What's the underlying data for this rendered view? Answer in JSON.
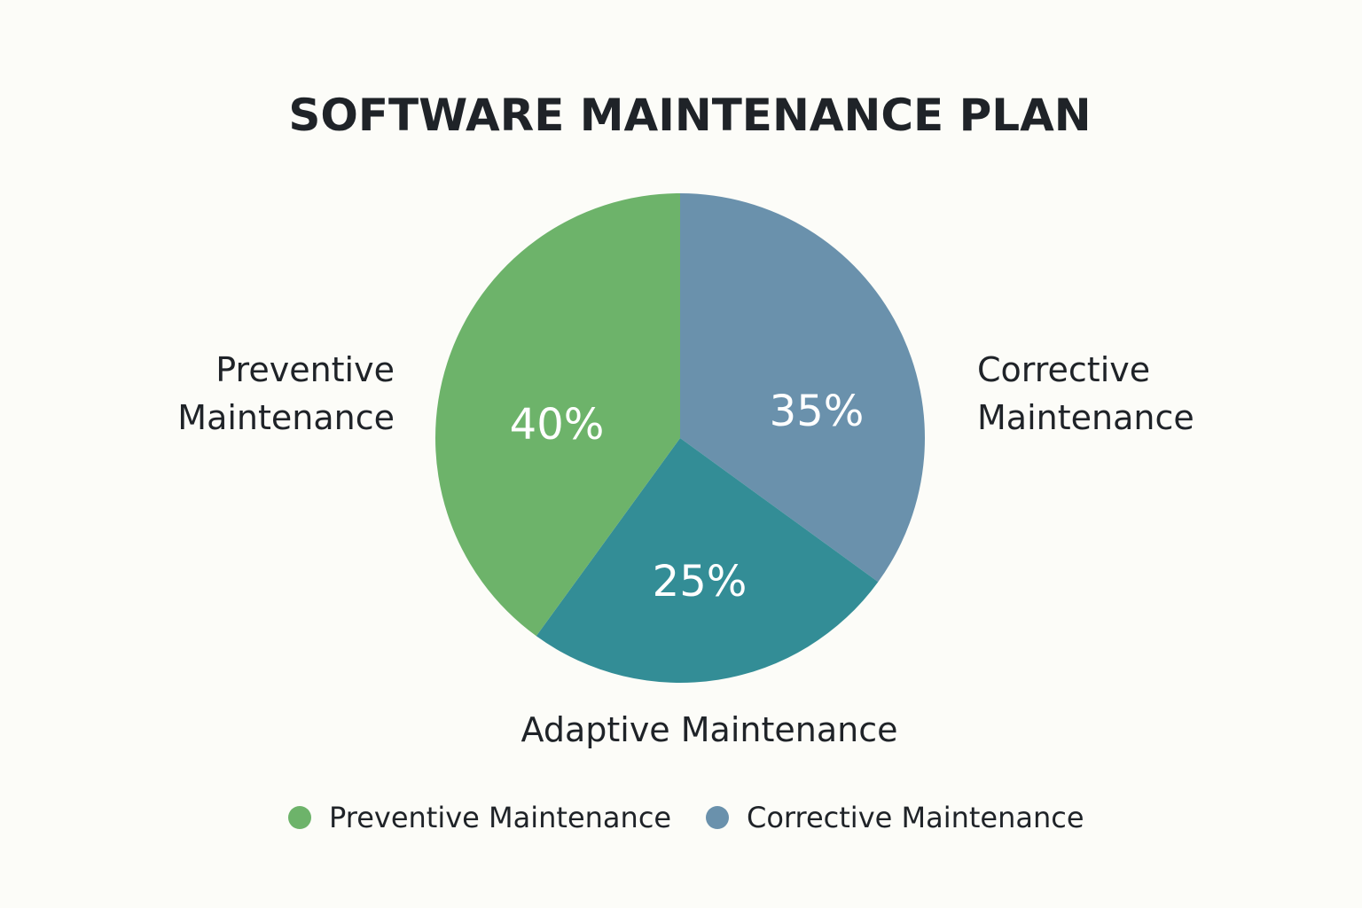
{
  "chart_data": {
    "type": "pie",
    "title": "SOFTWARE MAINTENANCE PLAN",
    "slices": [
      {
        "label_lines": [
          "Corrective",
          "Maintenance"
        ],
        "value": 35,
        "pct_text": "35%",
        "color": "#6a91ac"
      },
      {
        "label_lines": [
          "Adaptive Maintenance"
        ],
        "value": 25,
        "pct_text": "25%",
        "color": "#338d96"
      },
      {
        "label_lines": [
          "Preventive",
          "Maintenance"
        ],
        "value": 40,
        "pct_text": "40%",
        "color": "#6db36a"
      }
    ],
    "legend": [
      {
        "label": "Preventive Maintenance",
        "color": "#6db36a"
      },
      {
        "label": "Corrective Maintenance",
        "color": "#6a91ac"
      }
    ],
    "legend_placement": "bottom"
  }
}
